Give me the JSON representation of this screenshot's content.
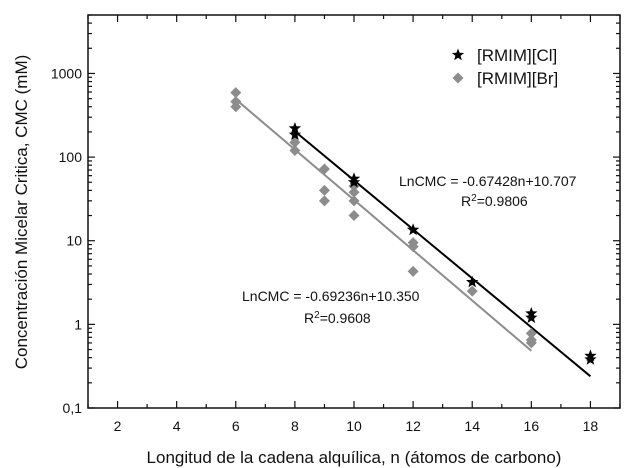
{
  "chart_data": {
    "type": "scatter",
    "title": "",
    "xlabel": "Longitud de la cadena alquílica, n (átomos de carbono)",
    "ylabel": "Concentración Micelar Critica, CMC (mM)",
    "xlim": [
      1,
      19
    ],
    "ylim": [
      0.1,
      5000
    ],
    "y_scale": "log",
    "x_ticks": [
      2,
      4,
      6,
      8,
      10,
      12,
      14,
      16,
      18
    ],
    "x_tick_labels": [
      "2",
      "4",
      "6",
      "8",
      "10",
      "12",
      "14",
      "16",
      "18"
    ],
    "y_ticks": [
      0.1,
      1,
      10,
      100,
      1000
    ],
    "y_tick_labels": [
      "0,1",
      "1",
      "10",
      "100",
      "1000"
    ],
    "grid": false,
    "legend_position": "top-right",
    "series": [
      {
        "name": "[RMIM][Cl]",
        "marker": "star",
        "color": "#000000",
        "points": [
          [
            8,
            220
          ],
          [
            8,
            185
          ],
          [
            10,
            55
          ],
          [
            10,
            50
          ],
          [
            12,
            13.5
          ],
          [
            14,
            3.2
          ],
          [
            16,
            1.35
          ],
          [
            16,
            1.2
          ],
          [
            18,
            0.42
          ],
          [
            18,
            0.38
          ]
        ],
        "fit": {
          "x_range": [
            8,
            18
          ],
          "color": "#000000",
          "equation": "LnCMC = -0.67428n+10.707",
          "r2_base": "R",
          "r2_exp": "2",
          "r2_value": "=0.9806"
        }
      },
      {
        "name": "[RMIM][Br]",
        "marker": "diamond",
        "color": "#8c8c8c",
        "points": [
          [
            6,
            590
          ],
          [
            6,
            460
          ],
          [
            6,
            400
          ],
          [
            8,
            150
          ],
          [
            8,
            120
          ],
          [
            9,
            72
          ],
          [
            9,
            40
          ],
          [
            9,
            30
          ],
          [
            10,
            45
          ],
          [
            10,
            38
          ],
          [
            10,
            30
          ],
          [
            10,
            20
          ],
          [
            12,
            9.5
          ],
          [
            12,
            8.5
          ],
          [
            12,
            4.3
          ],
          [
            14,
            2.5
          ],
          [
            16,
            0.78
          ],
          [
            16,
            0.65
          ],
          [
            16,
            0.6
          ]
        ],
        "fit": {
          "x_range": [
            6,
            16
          ],
          "color": "#8c8c8c",
          "equation": "LnCMC = -0.69236n+10.350",
          "r2_base": "R",
          "r2_exp": "2",
          "r2_value": "=0.9608"
        }
      }
    ]
  }
}
